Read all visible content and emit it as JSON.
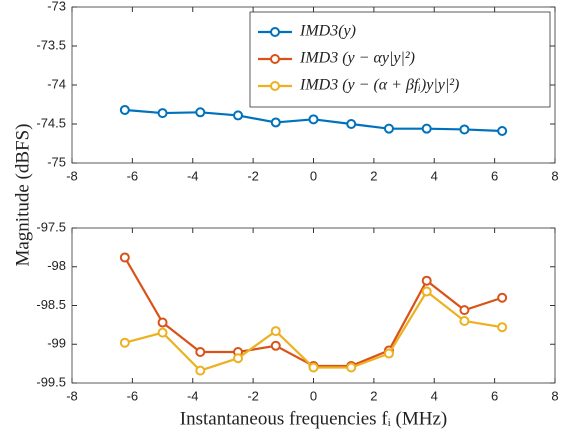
{
  "chart_data": [
    {
      "type": "line",
      "ylabel": "Magnitude (dBFS)",
      "x": [
        -6.25,
        -5,
        -3.75,
        -2.5,
        -1.25,
        0,
        1.25,
        2.5,
        3.75,
        5,
        6.25
      ],
      "series": [
        {
          "name": "IMD3(y)",
          "color": "#0072BD",
          "values": [
            -74.32,
            -74.36,
            -74.35,
            -74.39,
            -74.48,
            -74.44,
            -74.5,
            -74.56,
            -74.56,
            -74.57,
            -74.59
          ]
        }
      ],
      "xlim": [
        -8,
        8
      ],
      "xticks": [
        -8,
        -6,
        -4,
        -2,
        0,
        2,
        4,
        6,
        8
      ],
      "ylim": [
        -75,
        -73
      ],
      "yticks": [
        -73,
        -73.5,
        -74,
        -74.5,
        -75
      ],
      "legend": "upper right"
    },
    {
      "type": "line",
      "xlabel": "Instantaneous frequencies fᵢ (MHz)",
      "x": [
        -6.25,
        -5,
        -3.75,
        -2.5,
        -1.25,
        0,
        1.25,
        2.5,
        3.75,
        5,
        6.25
      ],
      "series": [
        {
          "name": "IMD3 (y − αy|y|²)",
          "color": "#D95319",
          "values": [
            -97.88,
            -98.72,
            -99.1,
            -99.1,
            -99.02,
            -99.28,
            -99.28,
            -99.08,
            -98.18,
            -98.56,
            -98.4
          ]
        },
        {
          "name": "IMD3 (y − (α + βfᵢ)y|y|²)",
          "color": "#EDB120",
          "values": [
            -98.98,
            -98.85,
            -99.34,
            -99.18,
            -98.83,
            -99.3,
            -99.3,
            -99.12,
            -98.32,
            -98.7,
            -98.78
          ]
        }
      ],
      "xlim": [
        -8,
        8
      ],
      "xticks": [
        -8,
        -6,
        -4,
        -2,
        0,
        2,
        4,
        6,
        8
      ],
      "ylim": [
        -99.5,
        -97.5
      ],
      "yticks": [
        -97.5,
        -98,
        -98.5,
        -99,
        -99.5
      ]
    }
  ]
}
